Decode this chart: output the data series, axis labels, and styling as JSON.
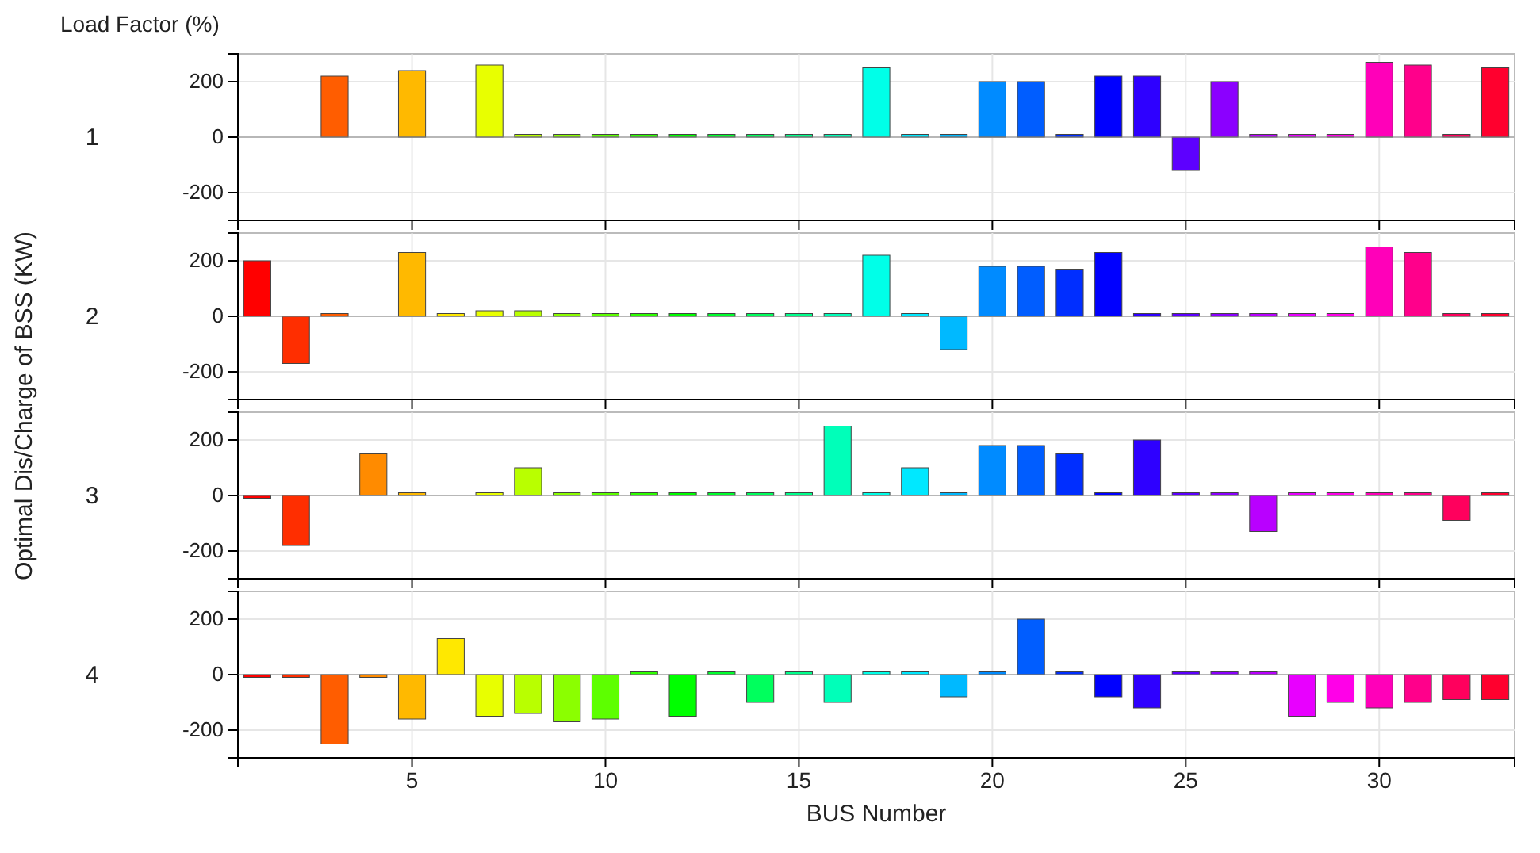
{
  "chart_data": [
    {
      "type": "bar",
      "title": "1",
      "ylabel": "Optimal Dis/Charge of BSS (KW)",
      "annotations": [
        "Load Factor (%)"
      ],
      "tick_labels": "y",
      "grid": true,
      "x": [
        1,
        2,
        3,
        4,
        5,
        6,
        7,
        8,
        9,
        10,
        11,
        12,
        13,
        14,
        15,
        16,
        17,
        18,
        19,
        20,
        21,
        22,
        23,
        24,
        25,
        26,
        27,
        28,
        29,
        30,
        31,
        32,
        33
      ],
      "xlim": [
        0.5,
        33.5
      ],
      "xticks": [
        5,
        10,
        15,
        20,
        25,
        30
      ],
      "ylim": [
        -300,
        300
      ],
      "yticks": [
        -200,
        0,
        200
      ],
      "colors": [
        "#ff0000",
        "#ff2e00",
        "#ff5d00",
        "#ff8b00",
        "#ffb900",
        "#ffe800",
        "#e8ff00",
        "#b9ff00",
        "#8bff00",
        "#5dff00",
        "#2eff00",
        "#00ff00",
        "#00ff2e",
        "#00ff5d",
        "#00ff8b",
        "#00ffb9",
        "#00ffe8",
        "#00e8ff",
        "#00b9ff",
        "#008bff",
        "#005dff",
        "#002eff",
        "#0000ff",
        "#2e00ff",
        "#5d00ff",
        "#8b00ff",
        "#b900ff",
        "#e800ff",
        "#ff00e8",
        "#ff00b9",
        "#ff008b",
        "#ff005d",
        "#ff002e"
      ],
      "values": [
        0,
        0,
        220,
        0,
        240,
        0,
        260,
        10,
        10,
        10,
        10,
        10,
        10,
        10,
        10,
        10,
        250,
        10,
        10,
        200,
        200,
        10,
        220,
        220,
        -120,
        200,
        10,
        10,
        10,
        270,
        260,
        10,
        250
      ]
    },
    {
      "type": "bar",
      "title": "2",
      "tick_labels": "y",
      "grid": true,
      "x": [
        1,
        2,
        3,
        4,
        5,
        6,
        7,
        8,
        9,
        10,
        11,
        12,
        13,
        14,
        15,
        16,
        17,
        18,
        19,
        20,
        21,
        22,
        23,
        24,
        25,
        26,
        27,
        28,
        29,
        30,
        31,
        32,
        33
      ],
      "xlim": [
        0.5,
        33.5
      ],
      "xticks": [
        5,
        10,
        15,
        20,
        25,
        30
      ],
      "ylim": [
        -300,
        300
      ],
      "yticks": [
        -200,
        0,
        200
      ],
      "colors": [
        "#ff0000",
        "#ff2e00",
        "#ff5d00",
        "#ff8b00",
        "#ffb900",
        "#ffe800",
        "#e8ff00",
        "#b9ff00",
        "#8bff00",
        "#5dff00",
        "#2eff00",
        "#00ff00",
        "#00ff2e",
        "#00ff5d",
        "#00ff8b",
        "#00ffb9",
        "#00ffe8",
        "#00e8ff",
        "#00b9ff",
        "#008bff",
        "#005dff",
        "#002eff",
        "#0000ff",
        "#2e00ff",
        "#5d00ff",
        "#8b00ff",
        "#b900ff",
        "#e800ff",
        "#ff00e8",
        "#ff00b9",
        "#ff008b",
        "#ff005d",
        "#ff002e"
      ],
      "values": [
        200,
        -170,
        10,
        0,
        230,
        10,
        20,
        20,
        10,
        10,
        10,
        10,
        10,
        10,
        10,
        10,
        220,
        10,
        -120,
        180,
        180,
        170,
        230,
        10,
        10,
        10,
        10,
        10,
        10,
        250,
        230,
        10,
        10
      ]
    },
    {
      "type": "bar",
      "title": "3",
      "tick_labels": "y",
      "grid": true,
      "x": [
        1,
        2,
        3,
        4,
        5,
        6,
        7,
        8,
        9,
        10,
        11,
        12,
        13,
        14,
        15,
        16,
        17,
        18,
        19,
        20,
        21,
        22,
        23,
        24,
        25,
        26,
        27,
        28,
        29,
        30,
        31,
        32,
        33
      ],
      "xlim": [
        0.5,
        33.5
      ],
      "xticks": [
        5,
        10,
        15,
        20,
        25,
        30
      ],
      "ylim": [
        -300,
        300
      ],
      "yticks": [
        -200,
        0,
        200
      ],
      "colors": [
        "#ff0000",
        "#ff2e00",
        "#ff5d00",
        "#ff8b00",
        "#ffb900",
        "#ffe800",
        "#e8ff00",
        "#b9ff00",
        "#8bff00",
        "#5dff00",
        "#2eff00",
        "#00ff00",
        "#00ff2e",
        "#00ff5d",
        "#00ff8b",
        "#00ffb9",
        "#00ffe8",
        "#00e8ff",
        "#00b9ff",
        "#008bff",
        "#005dff",
        "#002eff",
        "#0000ff",
        "#2e00ff",
        "#5d00ff",
        "#8b00ff",
        "#b900ff",
        "#e800ff",
        "#ff00e8",
        "#ff00b9",
        "#ff008b",
        "#ff005d",
        "#ff002e"
      ],
      "values": [
        -10,
        -180,
        0,
        150,
        10,
        0,
        10,
        100,
        10,
        10,
        10,
        10,
        10,
        10,
        10,
        250,
        10,
        100,
        10,
        180,
        180,
        150,
        10,
        200,
        10,
        10,
        -130,
        10,
        10,
        10,
        10,
        -90,
        10
      ]
    },
    {
      "type": "bar",
      "title": "4",
      "xlabel": "BUS Number",
      "grid": true,
      "x": [
        1,
        2,
        3,
        4,
        5,
        6,
        7,
        8,
        9,
        10,
        11,
        12,
        13,
        14,
        15,
        16,
        17,
        18,
        19,
        20,
        21,
        22,
        23,
        24,
        25,
        26,
        27,
        28,
        29,
        30,
        31,
        32,
        33
      ],
      "xlim": [
        0.5,
        33.5
      ],
      "xticks": [
        5,
        10,
        15,
        20,
        25,
        30
      ],
      "ylim": [
        -300,
        300
      ],
      "yticks": [
        -200,
        0,
        200
      ],
      "colors": [
        "#ff0000",
        "#ff2e00",
        "#ff5d00",
        "#ff8b00",
        "#ffb900",
        "#ffe800",
        "#e8ff00",
        "#b9ff00",
        "#8bff00",
        "#5dff00",
        "#2eff00",
        "#00ff00",
        "#00ff2e",
        "#00ff5d",
        "#00ff8b",
        "#00ffb9",
        "#00ffe8",
        "#00e8ff",
        "#00b9ff",
        "#008bff",
        "#005dff",
        "#002eff",
        "#0000ff",
        "#2e00ff",
        "#5d00ff",
        "#8b00ff",
        "#b900ff",
        "#e800ff",
        "#ff00e8",
        "#ff00b9",
        "#ff008b",
        "#ff005d",
        "#ff002e"
      ],
      "values": [
        -10,
        -10,
        -250,
        -10,
        -160,
        130,
        -150,
        -140,
        -170,
        -160,
        10,
        -150,
        10,
        -100,
        10,
        -100,
        10,
        10,
        -80,
        10,
        200,
        10,
        -80,
        -120,
        10,
        10,
        10,
        -150,
        -100,
        -120,
        -100,
        -90,
        -90
      ]
    }
  ]
}
